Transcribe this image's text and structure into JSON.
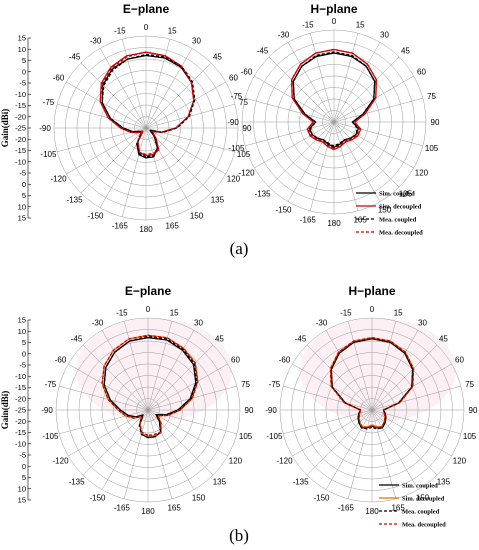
{
  "figure": {
    "caption_a": "(a)",
    "caption_b": "(b)"
  },
  "chart_data": [
    {
      "type": "polar-line",
      "panel": "(a)",
      "title": "E−plane",
      "ylabel": "Gain(dBi)",
      "rlim": [
        -25,
        15
      ],
      "radial_ticks": [
        "15",
        "10",
        "5",
        "0",
        "-5",
        "-10",
        "-15",
        "-20",
        "-25",
        "-20",
        "-15",
        "-10",
        "-5",
        "0",
        "5",
        "10",
        "15"
      ],
      "angle_ticks": [
        -165,
        -150,
        -135,
        -120,
        -105,
        -90,
        -75,
        -60,
        -45,
        -30,
        -15,
        0,
        15,
        30,
        45,
        60,
        75,
        90,
        105,
        120,
        135,
        150,
        165,
        180
      ],
      "series": [
        {
          "name": "Sim. coupled",
          "color": "#000000",
          "dash": "solid",
          "angles": [
            -180,
            -165,
            -150,
            -135,
            -120,
            -105,
            -90,
            -75,
            -60,
            -45,
            -30,
            -15,
            0,
            15,
            30,
            45,
            60,
            75,
            90,
            105,
            120,
            135,
            150,
            165
          ],
          "values": [
            -12,
            -13,
            -17,
            -23,
            -22,
            -19,
            -15,
            -9,
            -3,
            1.5,
            4.5,
            6,
            6.5,
            6.5,
            5.5,
            3,
            -1,
            -6,
            -12,
            -18,
            -23,
            -20,
            -15,
            -12
          ]
        },
        {
          "name": "Sim. decoupled",
          "color": "#d40000",
          "dash": "solid",
          "angles": [
            -180,
            -165,
            -150,
            -135,
            -120,
            -105,
            -90,
            -75,
            -60,
            -45,
            -30,
            -15,
            0,
            15,
            30,
            45,
            60,
            75,
            90,
            105,
            120,
            135,
            150,
            165
          ],
          "values": [
            -13,
            -14,
            -18,
            -23,
            -21,
            -18,
            -14,
            -8,
            -2,
            2.5,
            5.5,
            7.5,
            8,
            7.5,
            6,
            3,
            -1,
            -6,
            -12,
            -18,
            -22,
            -19,
            -14,
            -13
          ]
        },
        {
          "name": "Mea. coupled",
          "color": "#000000",
          "dash": "dashed",
          "angles": [
            -180,
            -165,
            -150,
            -135,
            -120,
            -105,
            -90,
            -75,
            -60,
            -45,
            -30,
            -15,
            0,
            15,
            30,
            45,
            60,
            75,
            90,
            105,
            120,
            135,
            150,
            165
          ],
          "values": [
            -12.5,
            -13.5,
            -17,
            -22,
            -22,
            -19,
            -15,
            -9,
            -3,
            1,
            4,
            6,
            7,
            7,
            6,
            3.5,
            -0.5,
            -5.5,
            -11.5,
            -17.5,
            -22,
            -20,
            -15,
            -12.5
          ]
        },
        {
          "name": "Mea. decoupled",
          "color": "#d40000",
          "dash": "dashed",
          "angles": [
            -180,
            -165,
            -150,
            -135,
            -120,
            -105,
            -90,
            -75,
            -60,
            -45,
            -30,
            -15,
            0,
            15,
            30,
            45,
            60,
            75,
            90,
            105,
            120,
            135,
            150,
            165
          ],
          "values": [
            -13.5,
            -14,
            -18,
            -22,
            -21,
            -18,
            -14,
            -8,
            -2,
            2,
            5,
            7,
            8,
            7.5,
            6,
            3,
            -1,
            -6,
            -12,
            -18,
            -22,
            -19,
            -14,
            -13.5
          ]
        }
      ]
    },
    {
      "type": "polar-line",
      "panel": "(a)",
      "title": "H−plane",
      "rlim": [
        -25,
        15
      ],
      "angle_ticks": [
        -165,
        -150,
        -135,
        -120,
        -105,
        -90,
        -75,
        -60,
        -45,
        -30,
        -15,
        0,
        15,
        30,
        45,
        60,
        75,
        90,
        105,
        120,
        135,
        150,
        165,
        180
      ],
      "legend": "bottom-right",
      "series": [
        {
          "name": "Sim. coupled",
          "color": "#000000",
          "dash": "solid",
          "angles": [
            -180,
            -165,
            -150,
            -135,
            -120,
            -105,
            -90,
            -75,
            -60,
            -45,
            -30,
            -15,
            0,
            15,
            30,
            45,
            60,
            75,
            90,
            105,
            120,
            135,
            150,
            165
          ],
          "values": [
            -14,
            -15,
            -16,
            -15,
            -14,
            -14,
            -17,
            -12,
            -5,
            0,
            3,
            4.5,
            5,
            4.5,
            3,
            0,
            -5,
            -12,
            -17,
            -14,
            -14,
            -15,
            -16,
            -15
          ]
        },
        {
          "name": "Sim. decoupled",
          "color": "#d40000",
          "dash": "solid",
          "angles": [
            -180,
            -165,
            -150,
            -135,
            -120,
            -105,
            -90,
            -75,
            -60,
            -45,
            -30,
            -15,
            0,
            15,
            30,
            45,
            60,
            75,
            90,
            105,
            120,
            135,
            150,
            165
          ],
          "values": [
            -13,
            -14,
            -15,
            -14,
            -13,
            -13,
            -16,
            -11,
            -4,
            1,
            4,
            6,
            6.5,
            6,
            4,
            1,
            -4,
            -11,
            -16,
            -13,
            -13,
            -14,
            -15,
            -14
          ]
        },
        {
          "name": "Mea. coupled",
          "color": "#000000",
          "dash": "dashed",
          "angles": [
            -180,
            -165,
            -150,
            -135,
            -120,
            -105,
            -90,
            -75,
            -60,
            -45,
            -30,
            -15,
            0,
            15,
            30,
            45,
            60,
            75,
            90,
            105,
            120,
            135,
            150,
            165
          ],
          "values": [
            -14.5,
            -15.5,
            -16,
            -15,
            -14,
            -14.5,
            -17,
            -12,
            -5,
            0,
            3,
            5,
            5.5,
            5,
            3,
            0,
            -5,
            -12,
            -17,
            -14.5,
            -14,
            -15,
            -16,
            -15.5
          ]
        },
        {
          "name": "Mea. decoupled",
          "color": "#d40000",
          "dash": "dashed",
          "angles": [
            -180,
            -165,
            -150,
            -135,
            -120,
            -105,
            -90,
            -75,
            -60,
            -45,
            -30,
            -15,
            0,
            15,
            30,
            45,
            60,
            75,
            90,
            105,
            120,
            135,
            150,
            165
          ],
          "values": [
            -13.5,
            -14.5,
            -15.5,
            -14.5,
            -13.5,
            -13.5,
            -16,
            -11,
            -4,
            1,
            4,
            6,
            6.5,
            6,
            4,
            1,
            -4,
            -11,
            -16,
            -13.5,
            -13.5,
            -14.5,
            -15.5,
            -14.5
          ]
        }
      ]
    },
    {
      "type": "polar-line",
      "panel": "(b)",
      "title": "E−plane",
      "ylabel": "Gain(dBi)",
      "rlim": [
        -25,
        15
      ],
      "radial_ticks": [
        "15",
        "10",
        "5",
        "0",
        "-5",
        "-10",
        "-15",
        "-20",
        "-25",
        "-20",
        "-15",
        "-10",
        "-5",
        "0",
        "5",
        "10",
        "15"
      ],
      "angle_ticks": [
        -165,
        -150,
        -135,
        -120,
        -105,
        -90,
        -75,
        -60,
        -45,
        -30,
        -15,
        0,
        15,
        30,
        45,
        60,
        75,
        90,
        105,
        120,
        135,
        150,
        165,
        180
      ],
      "series": [
        {
          "name": "Sim. coupled",
          "color": "#000000",
          "dash": "solid",
          "angles": [
            -180,
            -165,
            -150,
            -135,
            -120,
            -105,
            -90,
            -75,
            -60,
            -45,
            -30,
            -15,
            0,
            15,
            30,
            45,
            60,
            75,
            90,
            105,
            120,
            135,
            150,
            165
          ],
          "values": [
            -13,
            -14,
            -18,
            -22,
            -19,
            -16,
            -13,
            -8,
            -3,
            1,
            4,
            6,
            6.5,
            6.5,
            5,
            3,
            -1,
            -6,
            -12,
            -17,
            -21,
            -18,
            -14,
            -13
          ]
        },
        {
          "name": "Sim. decoupled",
          "color": "#e07000",
          "dash": "solid",
          "angles": [
            -180,
            -165,
            -150,
            -135,
            -120,
            -105,
            -90,
            -75,
            -60,
            -45,
            -30,
            -15,
            0,
            15,
            30,
            45,
            60,
            75,
            90,
            105,
            120,
            135,
            150,
            165
          ],
          "values": [
            -13.5,
            -14.5,
            -18,
            -21,
            -18,
            -15,
            -12,
            -7,
            -2,
            2,
            5,
            7,
            7.5,
            7.5,
            6,
            4,
            0,
            -5,
            -11,
            -16,
            -20,
            -17,
            -13.5,
            -13.5
          ]
        },
        {
          "name": "Mea. coupled",
          "color": "#000000",
          "dash": "dashed",
          "angles": [
            -180,
            -165,
            -150,
            -135,
            -120,
            -105,
            -90,
            -75,
            -60,
            -45,
            -30,
            -15,
            0,
            15,
            30,
            45,
            60,
            75,
            90,
            105,
            120,
            135,
            150,
            165
          ],
          "values": [
            -13,
            -14,
            -17.5,
            -21.5,
            -19,
            -16,
            -13,
            -8,
            -3,
            1,
            4,
            6,
            7,
            7,
            5.5,
            3.5,
            -0.5,
            -5.5,
            -11.5,
            -16.5,
            -20.5,
            -18,
            -14,
            -13
          ]
        },
        {
          "name": "Mea. decoupled",
          "color": "#d40000",
          "dash": "dashed",
          "angles": [
            -180,
            -165,
            -150,
            -135,
            -120,
            -105,
            -90,
            -75,
            -60,
            -45,
            -30,
            -15,
            0,
            15,
            30,
            45,
            60,
            75,
            90,
            105,
            120,
            135,
            150,
            165
          ],
          "values": [
            -14,
            -15,
            -18,
            -21,
            -18,
            -15,
            -12,
            -7,
            -2,
            2,
            5,
            7,
            7.5,
            7.5,
            6,
            4,
            0,
            -5,
            -11,
            -16,
            -20,
            -17,
            -14,
            -14
          ]
        }
      ]
    },
    {
      "type": "polar-line",
      "panel": "(b)",
      "title": "H−plane",
      "rlim": [
        -25,
        15
      ],
      "angle_ticks": [
        -165,
        -150,
        -135,
        -120,
        -105,
        -90,
        -75,
        -60,
        -45,
        -30,
        -15,
        0,
        15,
        30,
        45,
        60,
        75,
        90,
        105,
        120,
        135,
        150,
        165,
        180
      ],
      "legend": "bottom-right",
      "series": [
        {
          "name": "Sim. coupled",
          "color": "#000000",
          "dash": "solid",
          "angles": [
            -180,
            -165,
            -150,
            -135,
            -120,
            -105,
            -90,
            -75,
            -60,
            -45,
            -30,
            -15,
            0,
            15,
            30,
            45,
            60,
            75,
            90,
            105,
            120,
            135,
            150,
            165
          ],
          "values": [
            -18,
            -17,
            -16,
            -17,
            -18,
            -19,
            -20,
            -13,
            -5,
            0,
            3.5,
            5.5,
            6,
            5.5,
            3.5,
            0,
            -5,
            -13,
            -20,
            -19,
            -18,
            -17,
            -16,
            -17
          ]
        },
        {
          "name": "Sim. decoupled",
          "color": "#e07000",
          "dash": "solid",
          "angles": [
            -180,
            -165,
            -150,
            -135,
            -120,
            -105,
            -90,
            -75,
            -60,
            -45,
            -30,
            -15,
            0,
            15,
            30,
            45,
            60,
            75,
            90,
            105,
            120,
            135,
            150,
            165
          ],
          "values": [
            -18.5,
            -17.5,
            -16.5,
            -17.5,
            -18.5,
            -19.5,
            -20,
            -12.5,
            -4.5,
            0.5,
            4,
            6,
            6.5,
            6,
            4,
            0.5,
            -4.5,
            -12.5,
            -20,
            -19.5,
            -18.5,
            -17.5,
            -16.5,
            -17.5
          ]
        },
        {
          "name": "Mea. coupled",
          "color": "#000000",
          "dash": "dashed",
          "angles": [
            -180,
            -165,
            -150,
            -135,
            -120,
            -105,
            -90,
            -75,
            -60,
            -45,
            -30,
            -15,
            0,
            15,
            30,
            45,
            60,
            75,
            90,
            105,
            120,
            135,
            150,
            165
          ],
          "values": [
            -17.5,
            -16.5,
            -16,
            -17,
            -18,
            -19,
            -20,
            -13,
            -5,
            0,
            3.5,
            5.5,
            6,
            5.5,
            3.5,
            0,
            -5,
            -13,
            -20,
            -19,
            -18,
            -17,
            -16,
            -16.5
          ]
        },
        {
          "name": "Mea. decoupled",
          "color": "#d40000",
          "dash": "dashed",
          "angles": [
            -180,
            -165,
            -150,
            -135,
            -120,
            -105,
            -90,
            -75,
            -60,
            -45,
            -30,
            -15,
            0,
            15,
            30,
            45,
            60,
            75,
            90,
            105,
            120,
            135,
            150,
            165
          ],
          "values": [
            -18,
            -17,
            -16.5,
            -17.5,
            -18.5,
            -19.5,
            -20,
            -12.5,
            -4.5,
            0.5,
            4,
            6,
            6.5,
            6,
            4,
            0.5,
            -4.5,
            -12.5,
            -20,
            -19.5,
            -18.5,
            -17.5,
            -16.5,
            -17
          ]
        }
      ]
    }
  ]
}
